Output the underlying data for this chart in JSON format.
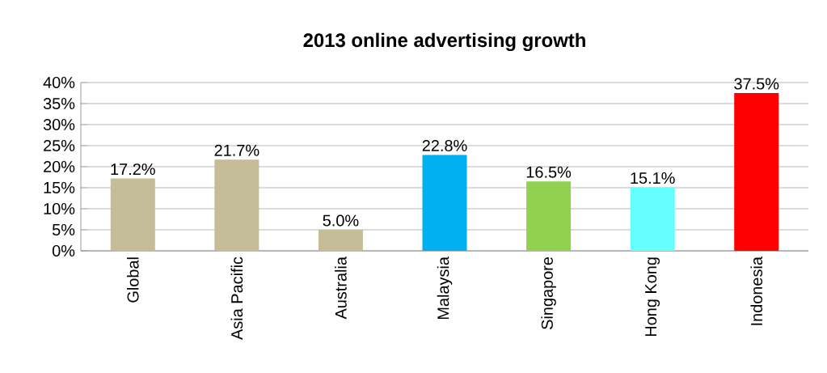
{
  "chart_data": {
    "type": "bar",
    "title": "2013 online advertising growth",
    "categories": [
      "Global",
      "Asia Pacific",
      "Australia",
      "Malaysia",
      "Singapore",
      "Hong Kong",
      "Indonesia"
    ],
    "values": [
      17.2,
      21.7,
      5.0,
      22.8,
      16.5,
      15.1,
      37.5
    ],
    "colors": [
      "#c4bd97",
      "#c4bd97",
      "#c4bd97",
      "#00b0f0",
      "#92d050",
      "#66ffff",
      "#ff0000"
    ],
    "value_labels": [
      "17.2%",
      "21.7%",
      "5.0%",
      "22.8%",
      "16.5%",
      "15.1%",
      "37.5%"
    ],
    "ylim": [
      0,
      40
    ],
    "yticks": [
      {
        "value": 0,
        "label": "0%"
      },
      {
        "value": 5,
        "label": "5%"
      },
      {
        "value": 10,
        "label": "10%"
      },
      {
        "value": 15,
        "label": "15%"
      },
      {
        "value": 20,
        "label": "20%"
      },
      {
        "value": 25,
        "label": "25%"
      },
      {
        "value": 30,
        "label": "30%"
      },
      {
        "value": 35,
        "label": "35%"
      },
      {
        "value": 40,
        "label": "40%"
      }
    ],
    "grid": "y"
  }
}
